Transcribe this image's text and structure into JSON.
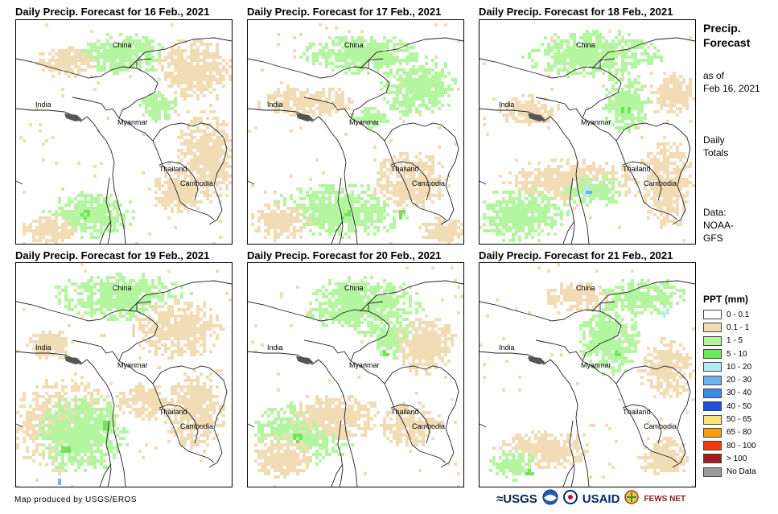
{
  "panels": [
    {
      "title": "Daily Precip. Forecast for 16 Feb., 2021",
      "variant": 0
    },
    {
      "title": "Daily Precip. Forecast for 17 Feb., 2021",
      "variant": 1
    },
    {
      "title": "Daily Precip. Forecast for 18 Feb., 2021",
      "variant": 2
    },
    {
      "title": "Daily Precip. Forecast for 19 Feb., 2021",
      "variant": 3
    },
    {
      "title": "Daily Precip. Forecast for 20 Feb., 2021",
      "variant": 4
    },
    {
      "title": "Daily Precip. Forecast for 21 Feb., 2021",
      "variant": 5
    }
  ],
  "map_labels": {
    "china": "China",
    "india": "India",
    "myanmar": "Myanmar",
    "thailand": "Thailand",
    "cambodia": "Cambodia"
  },
  "sidebar": {
    "title_line1": "Precip.",
    "title_line2": "Forecast",
    "asof_line1": "as of",
    "asof_line2": "Feb 16, 2021",
    "daily_line1": "Daily",
    "daily_line2": "Totals",
    "data_line1": "Data:",
    "data_line2": "NOAA-",
    "data_line3": "GFS"
  },
  "legend": {
    "title": "PPT (mm)",
    "items": [
      {
        "label": "0 - 0.1",
        "color": "#ffffff"
      },
      {
        "label": "0.1 - 1",
        "color": "#f1dcb6"
      },
      {
        "label": "1 - 5",
        "color": "#b4f5a0"
      },
      {
        "label": "5 - 10",
        "color": "#6ee65a"
      },
      {
        "label": "10 - 20",
        "color": "#b2ecf4"
      },
      {
        "label": "20 - 30",
        "color": "#6ab4ee"
      },
      {
        "label": "30 - 40",
        "color": "#3c8ce6"
      },
      {
        "label": "40 - 50",
        "color": "#1e50dc"
      },
      {
        "label": "50 - 65",
        "color": "#f8e17c"
      },
      {
        "label": "65 - 80",
        "color": "#f5a00a"
      },
      {
        "label": "80 - 100",
        "color": "#f03c0a"
      },
      {
        "label": "> 100",
        "color": "#a01e1e"
      },
      {
        "label": "No Data",
        "color": "#9a9a9a"
      }
    ]
  },
  "footer": {
    "credit": "Map produced by USGS/EROS"
  },
  "logos": {
    "usgs": "≈USGS",
    "usaid": "USAID",
    "fewsnet": "FEWS NET"
  }
}
